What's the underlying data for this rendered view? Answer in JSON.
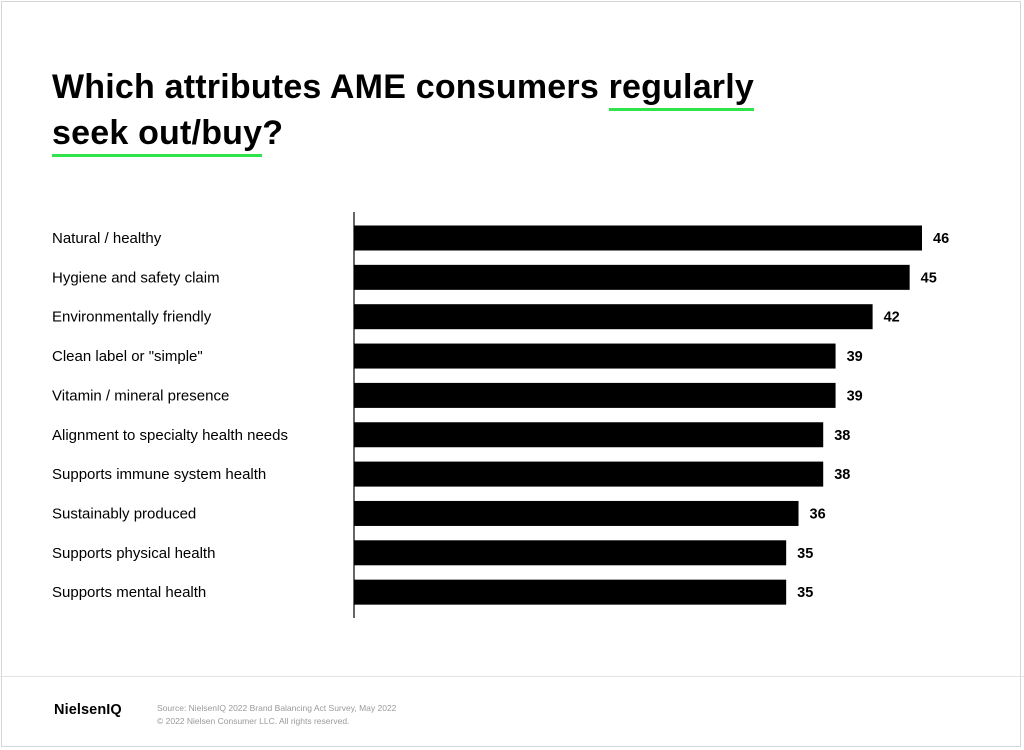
{
  "title": {
    "part1": "Which attributes AME consumers ",
    "highlight1": "regularly",
    "highlight2": "seek out/buy",
    "part2": "?"
  },
  "colors": {
    "bar": "#000000",
    "accent": "#2ee44a",
    "axis": "#000000"
  },
  "chart_data": {
    "type": "bar",
    "orientation": "horizontal",
    "categories": [
      "Natural / healthy",
      "Hygiene and safety claim",
      "Environmentally friendly",
      "Clean label or \"simple\"",
      "Vitamin / mineral presence",
      "Alignment to specialty health needs",
      "Supports immune system health",
      "Sustainably produced",
      "Supports physical health",
      "Supports mental health"
    ],
    "values": [
      46,
      45,
      42,
      39,
      39,
      38,
      38,
      36,
      35,
      35
    ],
    "value_labels": [
      "46",
      "45",
      "42",
      "39",
      "39",
      "38",
      "38",
      "36",
      "35",
      "35"
    ],
    "xlim": [
      0,
      46
    ],
    "grid": false,
    "legend": "none"
  },
  "footer": {
    "logo": "NielsenIQ",
    "source": "Source: NielsenIQ 2022 Brand Balancing Act Survey, May 2022",
    "copyright": "© 2022 Nielsen Consumer LLC. All rights reserved."
  }
}
